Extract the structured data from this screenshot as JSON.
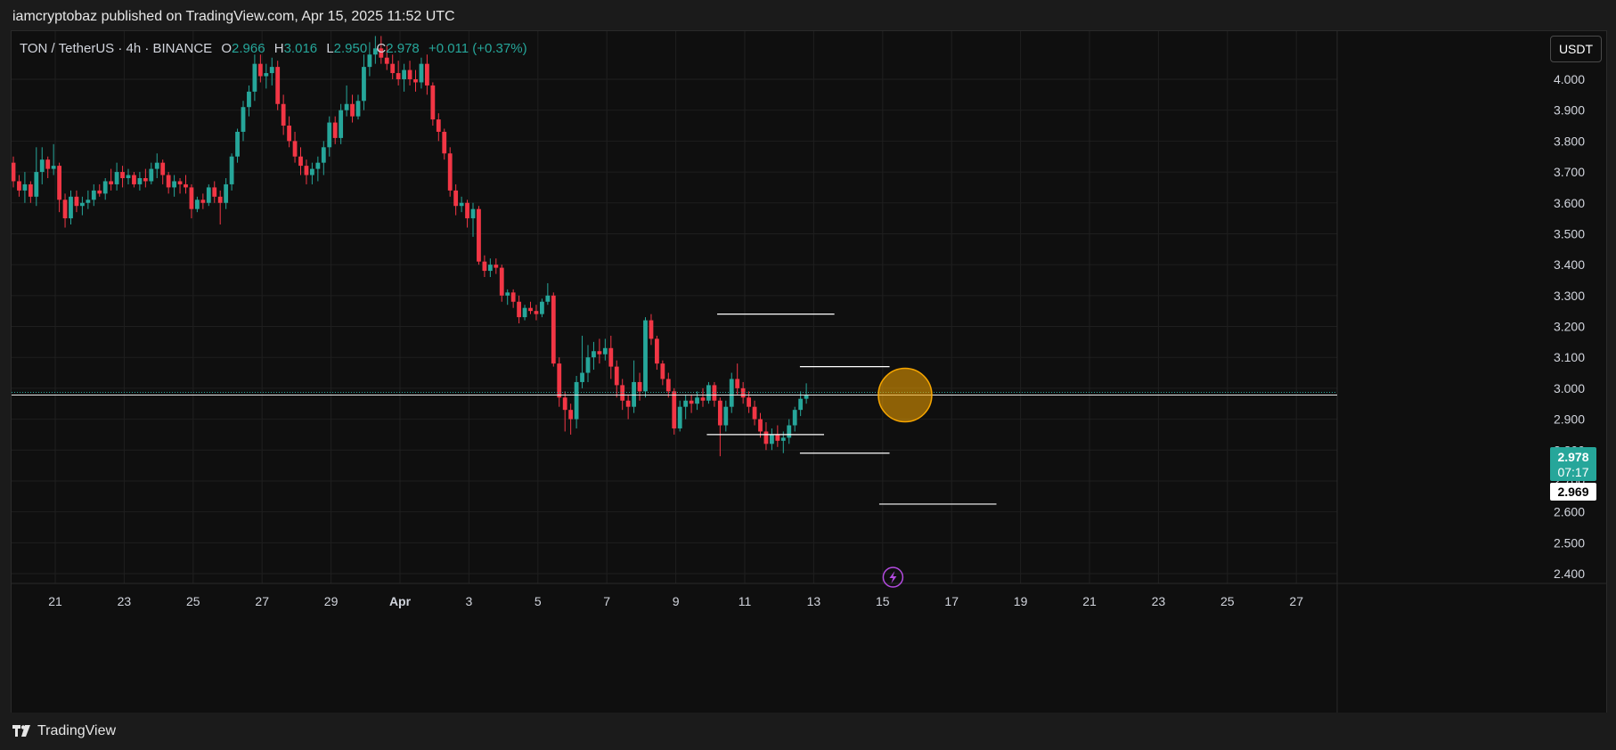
{
  "header": {
    "publish_line": "iamcryptobaz published on TradingView.com, Apr 15, 2025 11:52 UTC"
  },
  "legend": {
    "symbol": "TON / TetherUS · 4h · BINANCE",
    "open_label": "O",
    "open": "2.966",
    "high_label": "H",
    "high": "3.016",
    "low_label": "L",
    "low": "2.950",
    "close_label": "C",
    "close": "2.978",
    "change": "+0.011 (+0.37%)"
  },
  "currency_button": "USDT",
  "price_tags": {
    "last_price": "2.978",
    "countdown": "07:17",
    "prev_price": "2.969"
  },
  "footer": {
    "brand": "TradingView"
  },
  "colors": {
    "background": "#0f0f0f",
    "up": "#26a69a",
    "down": "#f23645",
    "marker_circle": "#f7a600",
    "lightning": "#b44be1"
  },
  "chart_data": {
    "type": "candlestick",
    "symbol": "TON / TetherUS",
    "interval": "4h",
    "exchange": "BINANCE",
    "ylim": [
      2.32,
      4.18
    ],
    "y_ticks": [
      4.0,
      3.9,
      3.8,
      3.7,
      3.6,
      3.5,
      3.4,
      3.3,
      3.2,
      3.1,
      3.0,
      2.9,
      2.8,
      2.7,
      2.6,
      2.5,
      2.4
    ],
    "y_tick_labels": [
      "4.000",
      "3.900",
      "3.800",
      "3.700",
      "3.600",
      "3.500",
      "3.400",
      "3.300",
      "3.200",
      "3.100",
      "3.000",
      "2.900",
      "2.800",
      "2.700",
      "2.600",
      "2.500",
      "2.400"
    ],
    "x_ticks": [
      "21",
      "23",
      "25",
      "27",
      "29",
      "Apr",
      "3",
      "5",
      "7",
      "9",
      "11",
      "13",
      "15",
      "17",
      "19",
      "21",
      "23",
      "25",
      "27"
    ],
    "x_tick_day_index": [
      1,
      3,
      5,
      7,
      9,
      11,
      13,
      15,
      17,
      19,
      21,
      23,
      25,
      27,
      29,
      31,
      33,
      35,
      37
    ],
    "current_price": 2.978,
    "candles": [
      [
        3.73,
        3.75,
        3.65,
        3.67
      ],
      [
        3.67,
        3.69,
        3.62,
        3.64
      ],
      [
        3.64,
        3.7,
        3.6,
        3.66
      ],
      [
        3.66,
        3.67,
        3.6,
        3.62
      ],
      [
        3.62,
        3.78,
        3.59,
        3.7
      ],
      [
        3.7,
        3.78,
        3.66,
        3.74
      ],
      [
        3.74,
        3.75,
        3.68,
        3.71
      ],
      [
        3.71,
        3.79,
        3.69,
        3.72
      ],
      [
        3.72,
        3.73,
        3.57,
        3.61
      ],
      [
        3.61,
        3.63,
        3.52,
        3.55
      ],
      [
        3.55,
        3.64,
        3.53,
        3.62
      ],
      [
        3.62,
        3.64,
        3.57,
        3.59
      ],
      [
        3.59,
        3.62,
        3.56,
        3.6
      ],
      [
        3.6,
        3.64,
        3.58,
        3.61
      ],
      [
        3.61,
        3.66,
        3.59,
        3.64
      ],
      [
        3.64,
        3.66,
        3.62,
        3.63
      ],
      [
        3.63,
        3.68,
        3.61,
        3.67
      ],
      [
        3.67,
        3.71,
        3.64,
        3.66
      ],
      [
        3.66,
        3.73,
        3.64,
        3.7
      ],
      [
        3.7,
        3.72,
        3.65,
        3.68
      ],
      [
        3.68,
        3.71,
        3.66,
        3.69
      ],
      [
        3.69,
        3.7,
        3.65,
        3.66
      ],
      [
        3.66,
        3.7,
        3.64,
        3.68
      ],
      [
        3.68,
        3.71,
        3.65,
        3.67
      ],
      [
        3.67,
        3.73,
        3.66,
        3.71
      ],
      [
        3.71,
        3.76,
        3.68,
        3.73
      ],
      [
        3.73,
        3.74,
        3.66,
        3.69
      ],
      [
        3.69,
        3.7,
        3.63,
        3.65
      ],
      [
        3.65,
        3.69,
        3.62,
        3.67
      ],
      [
        3.67,
        3.68,
        3.63,
        3.66
      ],
      [
        3.66,
        3.69,
        3.63,
        3.65
      ],
      [
        3.65,
        3.66,
        3.55,
        3.58
      ],
      [
        3.58,
        3.62,
        3.57,
        3.61
      ],
      [
        3.61,
        3.63,
        3.58,
        3.6
      ],
      [
        3.6,
        3.66,
        3.59,
        3.65
      ],
      [
        3.65,
        3.67,
        3.6,
        3.62
      ],
      [
        3.62,
        3.64,
        3.53,
        3.6
      ],
      [
        3.6,
        3.68,
        3.58,
        3.66
      ],
      [
        3.66,
        3.76,
        3.64,
        3.75
      ],
      [
        3.75,
        3.84,
        3.73,
        3.83
      ],
      [
        3.83,
        3.93,
        3.8,
        3.91
      ],
      [
        3.91,
        3.98,
        3.88,
        3.96
      ],
      [
        3.96,
        4.08,
        3.93,
        4.05
      ],
      [
        4.05,
        4.08,
        3.99,
        4.01
      ],
      [
        4.01,
        4.05,
        3.97,
        4.02
      ],
      [
        4.02,
        4.07,
        3.98,
        4.04
      ],
      [
        4.04,
        4.06,
        3.9,
        3.92
      ],
      [
        3.92,
        3.95,
        3.82,
        3.85
      ],
      [
        3.85,
        3.88,
        3.78,
        3.8
      ],
      [
        3.8,
        3.83,
        3.73,
        3.75
      ],
      [
        3.75,
        3.78,
        3.69,
        3.72
      ],
      [
        3.72,
        3.74,
        3.66,
        3.69
      ],
      [
        3.69,
        3.73,
        3.66,
        3.71
      ],
      [
        3.71,
        3.75,
        3.67,
        3.73
      ],
      [
        3.73,
        3.8,
        3.69,
        3.78
      ],
      [
        3.78,
        3.88,
        3.75,
        3.86
      ],
      [
        3.86,
        3.88,
        3.79,
        3.81
      ],
      [
        3.81,
        3.92,
        3.79,
        3.9
      ],
      [
        3.9,
        3.98,
        3.88,
        3.92
      ],
      [
        3.92,
        3.95,
        3.86,
        3.88
      ],
      [
        3.88,
        3.95,
        3.87,
        3.93
      ],
      [
        3.93,
        4.08,
        3.9,
        4.04
      ],
      [
        4.04,
        4.12,
        4.01,
        4.08
      ],
      [
        4.08,
        4.14,
        4.05,
        4.1
      ],
      [
        4.1,
        4.14,
        4.05,
        4.07
      ],
      [
        4.07,
        4.11,
        4.03,
        4.05
      ],
      [
        4.05,
        4.08,
        4.0,
        4.02
      ],
      [
        4.02,
        4.06,
        3.98,
        4.0
      ],
      [
        4.0,
        4.05,
        3.96,
        4.03
      ],
      [
        4.03,
        4.06,
        3.98,
        4.0
      ],
      [
        4.0,
        4.03,
        3.96,
        3.99
      ],
      [
        3.99,
        4.07,
        3.97,
        4.05
      ],
      [
        4.05,
        4.08,
        3.95,
        3.98
      ],
      [
        3.98,
        3.99,
        3.85,
        3.87
      ],
      [
        3.87,
        3.89,
        3.8,
        3.83
      ],
      [
        3.83,
        3.84,
        3.74,
        3.76
      ],
      [
        3.76,
        3.78,
        3.62,
        3.64
      ],
      [
        3.64,
        3.66,
        3.56,
        3.59
      ],
      [
        3.59,
        3.62,
        3.57,
        3.6
      ],
      [
        3.6,
        3.61,
        3.52,
        3.55
      ],
      [
        3.55,
        3.6,
        3.49,
        3.58
      ],
      [
        3.58,
        3.59,
        3.4,
        3.41
      ],
      [
        3.41,
        3.43,
        3.36,
        3.38
      ],
      [
        3.38,
        3.42,
        3.36,
        3.4
      ],
      [
        3.4,
        3.42,
        3.37,
        3.39
      ],
      [
        3.39,
        3.4,
        3.28,
        3.3
      ],
      [
        3.3,
        3.32,
        3.27,
        3.31
      ],
      [
        3.31,
        3.32,
        3.26,
        3.28
      ],
      [
        3.28,
        3.3,
        3.21,
        3.23
      ],
      [
        3.23,
        3.27,
        3.22,
        3.26
      ],
      [
        3.26,
        3.28,
        3.24,
        3.25
      ],
      [
        3.25,
        3.27,
        3.22,
        3.24
      ],
      [
        3.24,
        3.29,
        3.23,
        3.28
      ],
      [
        3.28,
        3.34,
        3.27,
        3.3
      ],
      [
        3.3,
        3.31,
        3.07,
        3.08
      ],
      [
        3.08,
        3.1,
        2.94,
        2.97
      ],
      [
        2.97,
        2.99,
        2.86,
        2.93
      ],
      [
        2.93,
        2.95,
        2.85,
        2.9
      ],
      [
        2.9,
        3.04,
        2.87,
        3.02
      ],
      [
        3.02,
        3.17,
        3.0,
        3.05
      ],
      [
        3.05,
        3.14,
        3.02,
        3.1
      ],
      [
        3.1,
        3.15,
        3.06,
        3.12
      ],
      [
        3.12,
        3.16,
        3.08,
        3.11
      ],
      [
        3.11,
        3.16,
        3.09,
        3.13
      ],
      [
        3.13,
        3.17,
        3.03,
        3.07
      ],
      [
        3.07,
        3.09,
        2.97,
        3.01
      ],
      [
        3.01,
        3.03,
        2.93,
        2.96
      ],
      [
        2.96,
        2.98,
        2.9,
        2.94
      ],
      [
        2.94,
        3.09,
        2.92,
        3.02
      ],
      [
        3.02,
        3.05,
        2.96,
        2.99
      ],
      [
        2.99,
        3.23,
        2.97,
        3.22
      ],
      [
        3.22,
        3.24,
        3.14,
        3.16
      ],
      [
        3.16,
        3.17,
        3.06,
        3.08
      ],
      [
        3.08,
        3.09,
        3.01,
        3.03
      ],
      [
        3.03,
        3.05,
        2.97,
        2.99
      ],
      [
        2.99,
        3.0,
        2.85,
        2.87
      ],
      [
        2.87,
        2.96,
        2.86,
        2.94
      ],
      [
        2.94,
        2.98,
        2.9,
        2.96
      ],
      [
        2.96,
        2.98,
        2.92,
        2.95
      ],
      [
        2.95,
        2.99,
        2.93,
        2.97
      ],
      [
        2.97,
        3.0,
        2.94,
        2.96
      ],
      [
        2.96,
        3.02,
        2.95,
        3.01
      ],
      [
        3.01,
        3.02,
        2.94,
        2.96
      ],
      [
        2.96,
        2.97,
        2.78,
        2.88
      ],
      [
        2.88,
        2.96,
        2.86,
        2.94
      ],
      [
        2.94,
        3.05,
        2.92,
        3.03
      ],
      [
        3.03,
        3.08,
        2.98,
        3.0
      ],
      [
        3.0,
        3.02,
        2.95,
        2.97
      ],
      [
        2.97,
        2.99,
        2.92,
        2.94
      ],
      [
        2.94,
        2.96,
        2.88,
        2.9
      ],
      [
        2.9,
        2.92,
        2.84,
        2.86
      ],
      [
        2.86,
        2.89,
        2.8,
        2.82
      ],
      [
        2.82,
        2.87,
        2.8,
        2.85
      ],
      [
        2.85,
        2.88,
        2.81,
        2.83
      ],
      [
        2.83,
        2.86,
        2.79,
        2.84
      ],
      [
        2.84,
        2.9,
        2.82,
        2.88
      ],
      [
        2.88,
        2.94,
        2.86,
        2.93
      ],
      [
        2.93,
        2.99,
        2.91,
        2.966
      ],
      [
        2.966,
        3.016,
        2.95,
        2.978
      ]
    ],
    "levels": [
      {
        "y": 3.24,
        "from_day": 20.2,
        "to_day": 23.6
      },
      {
        "y": 3.07,
        "from_day": 22.6,
        "to_day": 25.2
      },
      {
        "y": 2.85,
        "from_day": 19.9,
        "to_day": 23.3
      },
      {
        "y": 2.79,
        "from_day": 22.6,
        "to_day": 25.2
      },
      {
        "y": 2.625,
        "from_day": 24.9,
        "to_day": 28.3
      }
    ],
    "marker_circle": {
      "day": 25.65,
      "price": 2.978
    }
  }
}
